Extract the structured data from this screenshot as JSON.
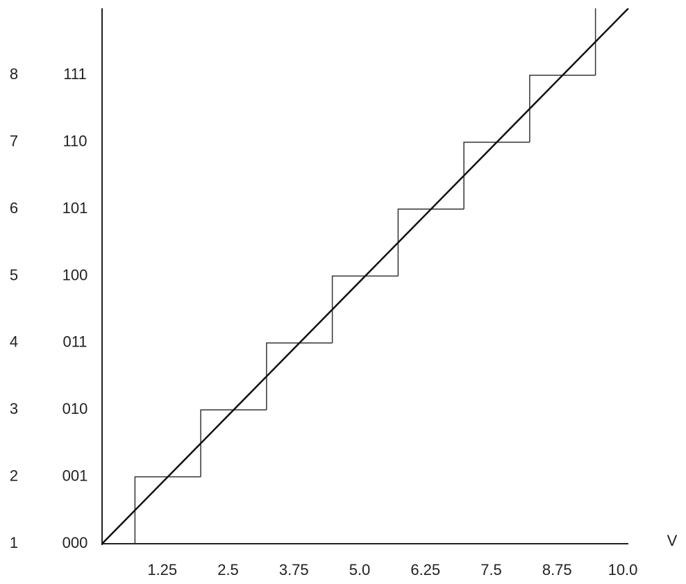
{
  "chart_data": {
    "type": "step",
    "x_label": "V",
    "xlim": [
      0,
      10
    ],
    "xticks": [
      1.25,
      2.5,
      3.75,
      {
        "value": 5,
        "label": "5.0"
      },
      6.25,
      7.5,
      8.75,
      {
        "value": 10,
        "label": "10.0"
      }
    ],
    "ylim": [
      0,
      8
    ],
    "yticks": [
      {
        "value": 0,
        "label": "000"
      },
      {
        "value": 1,
        "label": "001"
      },
      {
        "value": 2,
        "label": "010"
      },
      {
        "value": 3,
        "label": "011"
      },
      {
        "value": 4,
        "label": "100"
      },
      {
        "value": 5,
        "label": "101"
      },
      {
        "value": 6,
        "label": "110"
      },
      {
        "value": 7,
        "label": "111"
      }
    ],
    "y2lim": [
      1,
      9
    ],
    "y2ticks": [
      1,
      2,
      3,
      4,
      5,
      6,
      7,
      8
    ],
    "series": [
      {
        "type": "step",
        "color": "#333333",
        "x": [
          0.625,
          1.875,
          3.125,
          4.375,
          5.625,
          6.875,
          8.125,
          9.375
        ],
        "values": [
          1,
          2,
          3,
          4,
          5,
          6,
          7,
          8
        ]
      },
      {
        "type": "line",
        "color": "#111111",
        "x": [
          0,
          10
        ],
        "values": [
          0,
          8
        ]
      }
    ]
  }
}
